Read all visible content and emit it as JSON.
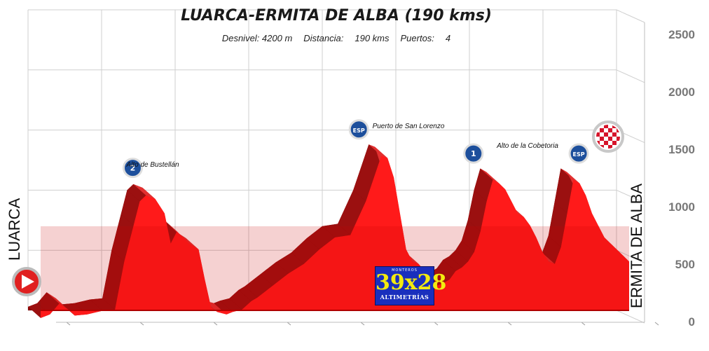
{
  "chart_data": {
    "type": "area",
    "title": "LUARCA-ERMITA DE ALBA (190 kms)",
    "stats": {
      "desnivel": "Desnivel: 4200 m",
      "distancia_label": "Distancia:",
      "distancia_value": "190 kms",
      "puertos_label": "Puertos:",
      "puertos_value": "4"
    },
    "ylim": [
      0,
      2500
    ],
    "yticks": [
      "0",
      "500",
      "1000",
      "1500",
      "2000",
      "2500"
    ],
    "xlim": [
      0,
      190
    ],
    "start_label": "LUARCA",
    "end_label": "ERMITA DE ALBA",
    "x": [
      0,
      3,
      6,
      9,
      11,
      15,
      20,
      24,
      27,
      30,
      32,
      34,
      37,
      40,
      42,
      44,
      46,
      48,
      51,
      53,
      55,
      57,
      60,
      62,
      65,
      68,
      70,
      75,
      80,
      85,
      90,
      95,
      100,
      105,
      110,
      112,
      114,
      116,
      118,
      120,
      122,
      124,
      126,
      128,
      130,
      132,
      134,
      136,
      138,
      140,
      142,
      144,
      146,
      148,
      150,
      152,
      154,
      156,
      158,
      160,
      162,
      164,
      166,
      168,
      170,
      172,
      174,
      176,
      178,
      180,
      182,
      184,
      186,
      188,
      190
    ],
    "elevation": [
      30,
      60,
      150,
      100,
      50,
      60,
      90,
      100,
      500,
      800,
      1000,
      1050,
      1020,
      900,
      650,
      750,
      700,
      650,
      600,
      350,
      120,
      80,
      60,
      80,
      100,
      170,
      200,
      300,
      400,
      480,
      600,
      700,
      720,
      1000,
      1380,
      1360,
      1200,
      900,
      600,
      500,
      480,
      420,
      350,
      300,
      320,
      350,
      420,
      450,
      500,
      580,
      750,
      1000,
      1180,
      1150,
      1100,
      1000,
      900,
      870,
      800,
      700,
      580,
      500,
      480,
      620,
      900,
      1180,
      1150,
      1050,
      900,
      800,
      700,
      650,
      600,
      550,
      500
    ],
    "climbs": [
      {
        "name": "Alto de Bustellán",
        "km": 32,
        "elevation": 1080,
        "category": "2"
      },
      {
        "name": "Puerto de San Lorenzo",
        "km": 105,
        "elevation": 1400,
        "category": "ESP"
      },
      {
        "name": "Alto de la Cobetoria",
        "km": 142,
        "elevation": 1200,
        "category": "1"
      },
      {
        "name": "",
        "km": 176,
        "elevation": 1200,
        "category": "ESP"
      }
    ],
    "colors": {
      "fill": "#ff1a1a",
      "fill_dark": "#d40000",
      "ridge": "#8a0000",
      "grid": "#cfcfcf",
      "axis_text": "#777777"
    }
  },
  "badge": {
    "top": "MONTEROS",
    "main": "39x28",
    "bottom": "ALTIMETRÍAS"
  }
}
